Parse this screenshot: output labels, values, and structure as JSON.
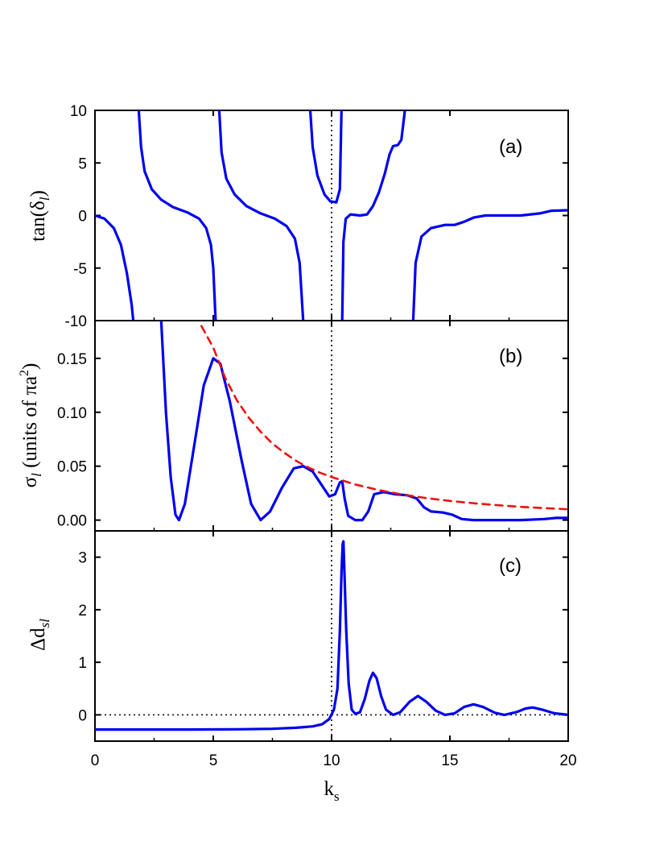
{
  "chart_data": [
    {
      "type": "line",
      "panel": "a",
      "panel_label": "(a)",
      "ylabel": "tan(δ_l)",
      "xlim": [
        0,
        20
      ],
      "ylim": [
        -10,
        10
      ],
      "yticks": [
        -10,
        -5,
        0,
        5,
        10
      ],
      "ytick_labels": [
        "-10",
        "-5",
        "0",
        "5",
        "10"
      ],
      "reference_lines": [
        {
          "axis": "x",
          "value": 10,
          "style": "dotted"
        }
      ],
      "series": [
        {
          "color": "#0000ee",
          "segments": [
            [
              [
                0,
                0
              ],
              [
                0.4,
                -0.3
              ],
              [
                0.8,
                -1.2
              ],
              [
                1.1,
                -2.8
              ],
              [
                1.35,
                -5.5
              ],
              [
                1.55,
                -8.5
              ],
              [
                1.62,
                -10
              ]
            ],
            [
              [
                1.85,
                10
              ],
              [
                1.95,
                6.5
              ],
              [
                2.1,
                4.2
              ],
              [
                2.4,
                2.5
              ],
              [
                2.8,
                1.5
              ],
              [
                3.3,
                0.8
              ],
              [
                3.9,
                0.3
              ],
              [
                4.4,
                -0.3
              ],
              [
                4.7,
                -1.2
              ],
              [
                4.9,
                -2.8
              ],
              [
                5.0,
                -5
              ],
              [
                5.1,
                -10
              ]
            ],
            [
              [
                5.25,
                10
              ],
              [
                5.35,
                6
              ],
              [
                5.55,
                3.5
              ],
              [
                5.9,
                2.0
              ],
              [
                6.4,
                0.9
              ],
              [
                7.0,
                0.2
              ],
              [
                7.6,
                -0.3
              ],
              [
                8.1,
                -1.0
              ],
              [
                8.45,
                -2.2
              ],
              [
                8.65,
                -4.5
              ],
              [
                8.8,
                -10
              ]
            ],
            [
              [
                9.1,
                10
              ],
              [
                9.2,
                6.5
              ],
              [
                9.4,
                3.8
              ],
              [
                9.7,
                2.0
              ],
              [
                9.95,
                1.35
              ],
              [
                10.2,
                1.25
              ],
              [
                10.35,
                2.5
              ],
              [
                10.42,
                10
              ]
            ],
            [
              [
                10.45,
                -10
              ],
              [
                10.5,
                -2.5
              ],
              [
                10.6,
                -0.3
              ],
              [
                10.8,
                0.1
              ],
              [
                11.2,
                0.0
              ],
              [
                11.5,
                0.1
              ],
              [
                11.75,
                0.9
              ],
              [
                12.0,
                2.2
              ],
              [
                12.25,
                4.0
              ],
              [
                12.45,
                5.8
              ],
              [
                12.6,
                6.6
              ],
              [
                12.8,
                6.7
              ],
              [
                12.95,
                7.2
              ],
              [
                13.1,
                10
              ]
            ],
            [
              [
                13.45,
                -10
              ],
              [
                13.55,
                -4.5
              ],
              [
                13.8,
                -2.0
              ],
              [
                14.2,
                -1.2
              ],
              [
                14.8,
                -0.9
              ],
              [
                15.2,
                -0.9
              ],
              [
                15.6,
                -0.6
              ],
              [
                16.0,
                -0.2
              ],
              [
                16.5,
                0.0
              ],
              [
                17.2,
                0.0
              ],
              [
                18.0,
                0.0
              ],
              [
                18.8,
                0.2
              ],
              [
                19.3,
                0.45
              ],
              [
                20,
                0.5
              ]
            ]
          ]
        }
      ]
    },
    {
      "type": "line",
      "panel": "b",
      "panel_label": "(b)",
      "ylabel": "σ_l (units of πa²)",
      "xlim": [
        0,
        20
      ],
      "ylim": [
        -0.01,
        0.185
      ],
      "yticks": [
        0,
        0.05,
        0.1,
        0.15
      ],
      "ytick_labels": [
        "0.00",
        "0.05",
        "0.10",
        "0.15"
      ],
      "reference_lines": [
        {
          "axis": "x",
          "value": 10,
          "style": "dotted"
        }
      ],
      "series": [
        {
          "color": "#0000ee",
          "style": "solid",
          "points": [
            [
              2.8,
              0.185
            ],
            [
              3.0,
              0.1
            ],
            [
              3.2,
              0.04
            ],
            [
              3.4,
              0.005
            ],
            [
              3.55,
              0.0
            ],
            [
              3.8,
              0.015
            ],
            [
              4.2,
              0.07
            ],
            [
              4.6,
              0.125
            ],
            [
              5.0,
              0.15
            ],
            [
              5.3,
              0.145
            ],
            [
              5.7,
              0.11
            ],
            [
              6.2,
              0.055
            ],
            [
              6.6,
              0.015
            ],
            [
              7.0,
              0.0
            ],
            [
              7.4,
              0.008
            ],
            [
              7.9,
              0.03
            ],
            [
              8.4,
              0.048
            ],
            [
              8.8,
              0.05
            ],
            [
              9.2,
              0.045
            ],
            [
              9.6,
              0.032
            ],
            [
              9.9,
              0.022
            ],
            [
              10.15,
              0.024
            ],
            [
              10.35,
              0.035
            ],
            [
              10.45,
              0.036
            ],
            [
              10.55,
              0.02
            ],
            [
              10.7,
              0.004
            ],
            [
              11.0,
              0.0
            ],
            [
              11.3,
              0.0
            ],
            [
              11.55,
              0.008
            ],
            [
              11.8,
              0.024
            ],
            [
              12.2,
              0.026
            ],
            [
              12.7,
              0.024
            ],
            [
              13.2,
              0.023
            ],
            [
              13.6,
              0.02
            ],
            [
              13.9,
              0.012
            ],
            [
              14.2,
              0.008
            ],
            [
              14.7,
              0.007
            ],
            [
              15.1,
              0.005
            ],
            [
              15.5,
              0.001
            ],
            [
              16.0,
              0.0
            ],
            [
              17.0,
              0.0
            ],
            [
              18.0,
              0.0
            ],
            [
              19.0,
              0.001
            ],
            [
              19.5,
              0.002
            ],
            [
              20,
              0.002
            ]
          ]
        },
        {
          "color": "#ee1111",
          "style": "dashed",
          "points": [
            [
              4.5,
              0.18
            ],
            [
              5.0,
              0.16
            ],
            [
              5.5,
              0.132
            ],
            [
              6.0,
              0.111
            ],
            [
              6.5,
              0.095
            ],
            [
              7.0,
              0.082
            ],
            [
              7.5,
              0.071
            ],
            [
              8.0,
              0.0625
            ],
            [
              8.5,
              0.055
            ],
            [
              9.0,
              0.049
            ],
            [
              9.5,
              0.044
            ],
            [
              10.0,
              0.04
            ],
            [
              11.0,
              0.033
            ],
            [
              12.0,
              0.0278
            ],
            [
              13.0,
              0.0237
            ],
            [
              14.0,
              0.0204
            ],
            [
              15.0,
              0.0178
            ],
            [
              16.0,
              0.0156
            ],
            [
              17.0,
              0.0138
            ],
            [
              18.0,
              0.0123
            ],
            [
              19.0,
              0.0111
            ],
            [
              20.0,
              0.01
            ]
          ]
        }
      ]
    },
    {
      "type": "line",
      "panel": "c",
      "panel_label": "(c)",
      "ylabel": "Δd_sl",
      "xlabel": "k_s",
      "xlim": [
        0,
        20
      ],
      "ylim": [
        -0.5,
        3.5
      ],
      "yticks": [
        0,
        1,
        2,
        3
      ],
      "ytick_labels": [
        "0",
        "1",
        "2",
        "3"
      ],
      "xticks": [
        0,
        5,
        10,
        15,
        20
      ],
      "xtick_labels": [
        "0",
        "5",
        "10",
        "15",
        "20"
      ],
      "reference_lines": [
        {
          "axis": "x",
          "value": 10,
          "style": "dotted"
        },
        {
          "axis": "y",
          "value": 0,
          "style": "dotted"
        }
      ],
      "series": [
        {
          "color": "#0000ee",
          "points": [
            [
              0,
              -0.28
            ],
            [
              2,
              -0.28
            ],
            [
              4,
              -0.28
            ],
            [
              6,
              -0.275
            ],
            [
              7.5,
              -0.265
            ],
            [
              8.5,
              -0.245
            ],
            [
              9.2,
              -0.22
            ],
            [
              9.6,
              -0.18
            ],
            [
              9.9,
              -0.08
            ],
            [
              10.1,
              0.1
            ],
            [
              10.25,
              0.5
            ],
            [
              10.35,
              1.6
            ],
            [
              10.42,
              2.7
            ],
            [
              10.47,
              3.25
            ],
            [
              10.5,
              3.3
            ],
            [
              10.55,
              2.6
            ],
            [
              10.62,
              1.6
            ],
            [
              10.72,
              0.6
            ],
            [
              10.85,
              0.1
            ],
            [
              11.0,
              0.02
            ],
            [
              11.2,
              0.05
            ],
            [
              11.4,
              0.3
            ],
            [
              11.6,
              0.65
            ],
            [
              11.75,
              0.8
            ],
            [
              11.9,
              0.7
            ],
            [
              12.1,
              0.35
            ],
            [
              12.3,
              0.1
            ],
            [
              12.6,
              0.0
            ],
            [
              12.9,
              0.05
            ],
            [
              13.3,
              0.25
            ],
            [
              13.65,
              0.36
            ],
            [
              14.0,
              0.25
            ],
            [
              14.4,
              0.08
            ],
            [
              14.8,
              0.0
            ],
            [
              15.2,
              0.03
            ],
            [
              15.6,
              0.15
            ],
            [
              16.0,
              0.2
            ],
            [
              16.4,
              0.15
            ],
            [
              16.9,
              0.04
            ],
            [
              17.3,
              0.0
            ],
            [
              17.8,
              0.05
            ],
            [
              18.2,
              0.12
            ],
            [
              18.5,
              0.14
            ],
            [
              18.9,
              0.1
            ],
            [
              19.4,
              0.03
            ],
            [
              20,
              0.0
            ]
          ]
        }
      ]
    }
  ],
  "shared_x_axis": {
    "xlabel": "k_s",
    "xlim": [
      0,
      20
    ],
    "xticks": [
      0,
      5,
      10,
      15,
      20
    ],
    "xtick_labels": [
      "0",
      "5",
      "10",
      "15",
      "20"
    ]
  },
  "axis_label_text": {
    "a": {
      "base": "tan(δ",
      "sub": "l",
      "end": ")"
    },
    "b": {
      "base": "σ",
      "sub": "l",
      "mid": " (units of πa",
      "sup": "2",
      "end": ")"
    },
    "c": {
      "base": "Δd",
      "sub": "sl"
    },
    "x": {
      "base": "k",
      "sub": "s"
    }
  }
}
